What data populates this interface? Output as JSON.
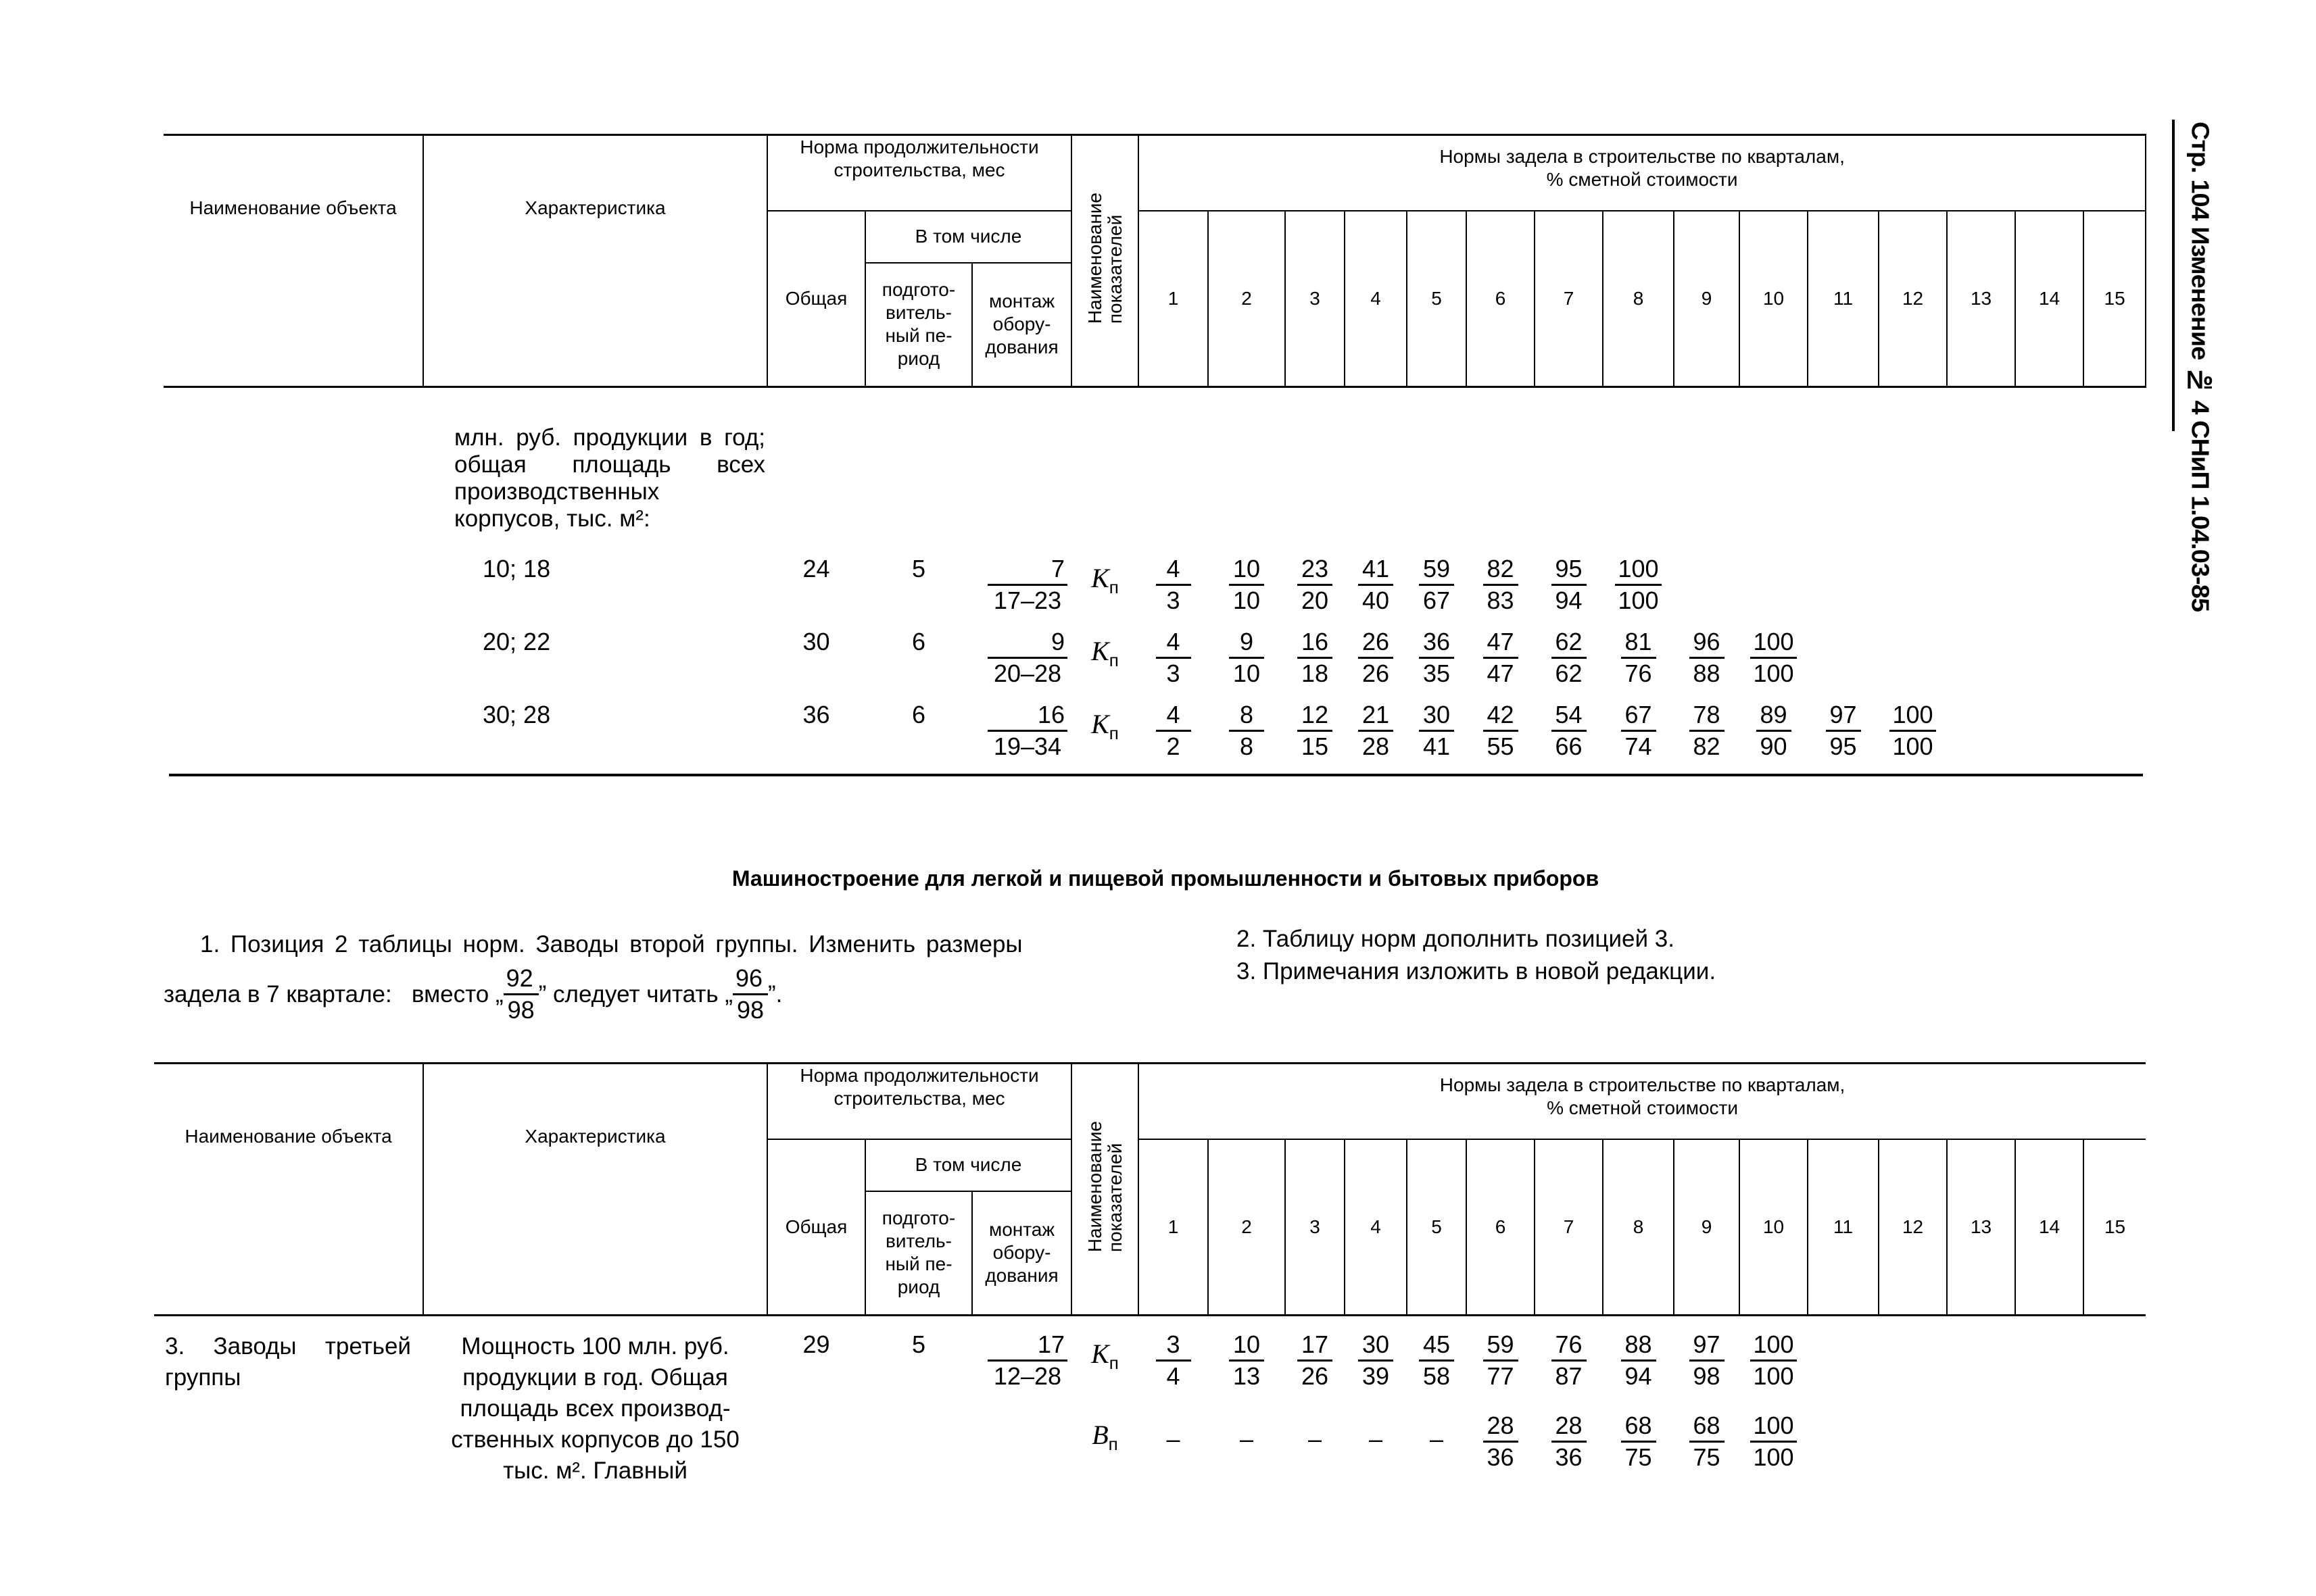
{
  "side_title": "Стр. 104 Изменение № 4 СНиП 1.04.03-85",
  "header": {
    "name": "Наименование объекта",
    "characteristic": "Характеристика",
    "duration": "Норма продолжительности строительства, мес",
    "total": "Общая",
    "including": "В том числе",
    "prep": "подгото-\nвитель-\nный пе-\nриод",
    "montage": "монтаж\nобору-\nдования",
    "indicators": "Наименование\nпоказателей",
    "norms": "Нормы задела в строительстве по кварталам,\n% сметной стоимости",
    "quarters": [
      "1",
      "2",
      "3",
      "4",
      "5",
      "6",
      "7",
      "8",
      "9",
      "10",
      "11",
      "12",
      "13",
      "14",
      "15"
    ]
  },
  "table1": {
    "intro": "млн. руб. продукции в год; общая площадь всех производственных корпусов, тыс. м²:",
    "rows": [
      {
        "char": "10; 18",
        "total": "24",
        "prep": "5",
        "montage": {
          "n": "7",
          "d": "17–23"
        },
        "indicator": "К",
        "indicator_sub": "п",
        "q": [
          {
            "n": "4",
            "d": "3"
          },
          {
            "n": "10",
            "d": "10"
          },
          {
            "n": "23",
            "d": "20"
          },
          {
            "n": "41",
            "d": "40"
          },
          {
            "n": "59",
            "d": "67"
          },
          {
            "n": "82",
            "d": "83"
          },
          {
            "n": "95",
            "d": "94"
          },
          {
            "n": "100",
            "d": "100"
          }
        ]
      },
      {
        "char": "20; 22",
        "total": "30",
        "prep": "6",
        "montage": {
          "n": "9",
          "d": "20–28"
        },
        "indicator": "К",
        "indicator_sub": "п",
        "q": [
          {
            "n": "4",
            "d": "3"
          },
          {
            "n": "9",
            "d": "10"
          },
          {
            "n": "16",
            "d": "18"
          },
          {
            "n": "26",
            "d": "26"
          },
          {
            "n": "36",
            "d": "35"
          },
          {
            "n": "47",
            "d": "47"
          },
          {
            "n": "62",
            "d": "62"
          },
          {
            "n": "81",
            "d": "76"
          },
          {
            "n": "96",
            "d": "88"
          },
          {
            "n": "100",
            "d": "100"
          }
        ]
      },
      {
        "char": "30; 28",
        "total": "36",
        "prep": "6",
        "montage": {
          "n": "16",
          "d": "19–34"
        },
        "indicator": "К",
        "indicator_sub": "п",
        "q": [
          {
            "n": "4",
            "d": "2"
          },
          {
            "n": "8",
            "d": "8"
          },
          {
            "n": "12",
            "d": "15"
          },
          {
            "n": "21",
            "d": "28"
          },
          {
            "n": "30",
            "d": "41"
          },
          {
            "n": "42",
            "d": "55"
          },
          {
            "n": "54",
            "d": "66"
          },
          {
            "n": "67",
            "d": "74"
          },
          {
            "n": "78",
            "d": "82"
          },
          {
            "n": "89",
            "d": "90"
          },
          {
            "n": "97",
            "d": "95"
          },
          {
            "n": "100",
            "d": "100"
          }
        ]
      }
    ]
  },
  "section": {
    "title": "Машиностроение для легкой и пищевой промышленности и бытовых приборов",
    "item1_line1": "1. Позиция 2 таблицы норм. Заводы второй группы. Изменить размеры",
    "item1_prefix": "задела в 7 квартале:   вместо „",
    "item1_old": {
      "n": "92",
      "d": "98"
    },
    "item1_mid": "” следует читать „",
    "item1_new": {
      "n": "96",
      "d": "98"
    },
    "item1_suffix": "”.",
    "item2": "2. Таблицу норм дополнить позицией 3.",
    "item3": "3. Примечания изложить в новой редакции."
  },
  "table2": {
    "name": "3. Заводы третьей группы",
    "char": "Мощность 100 млн. руб. продукции в год. Общая площадь всех производ-ственных корпусов до 150 тыс. м². Главный",
    "total": "29",
    "prep": "5",
    "montage": {
      "n": "17",
      "d": "12–28"
    },
    "rows": [
      {
        "indicator": "К",
        "indicator_sub": "п",
        "q": [
          {
            "n": "3",
            "d": "4"
          },
          {
            "n": "10",
            "d": "13"
          },
          {
            "n": "17",
            "d": "26"
          },
          {
            "n": "30",
            "d": "39"
          },
          {
            "n": "45",
            "d": "58"
          },
          {
            "n": "59",
            "d": "77"
          },
          {
            "n": "76",
            "d": "87"
          },
          {
            "n": "88",
            "d": "94"
          },
          {
            "n": "97",
            "d": "98"
          },
          {
            "n": "100",
            "d": "100"
          }
        ]
      },
      {
        "indicator": "В",
        "indicator_sub": "п",
        "q": [
          {
            "dash": "–"
          },
          {
            "dash": "–"
          },
          {
            "dash": "–"
          },
          {
            "dash": "–"
          },
          {
            "dash": "–"
          },
          {
            "n": "28",
            "d": "36"
          },
          {
            "n": "28",
            "d": "36"
          },
          {
            "n": "68",
            "d": "75"
          },
          {
            "n": "68",
            "d": "75"
          },
          {
            "n": "100",
            "d": "100"
          }
        ]
      }
    ]
  }
}
